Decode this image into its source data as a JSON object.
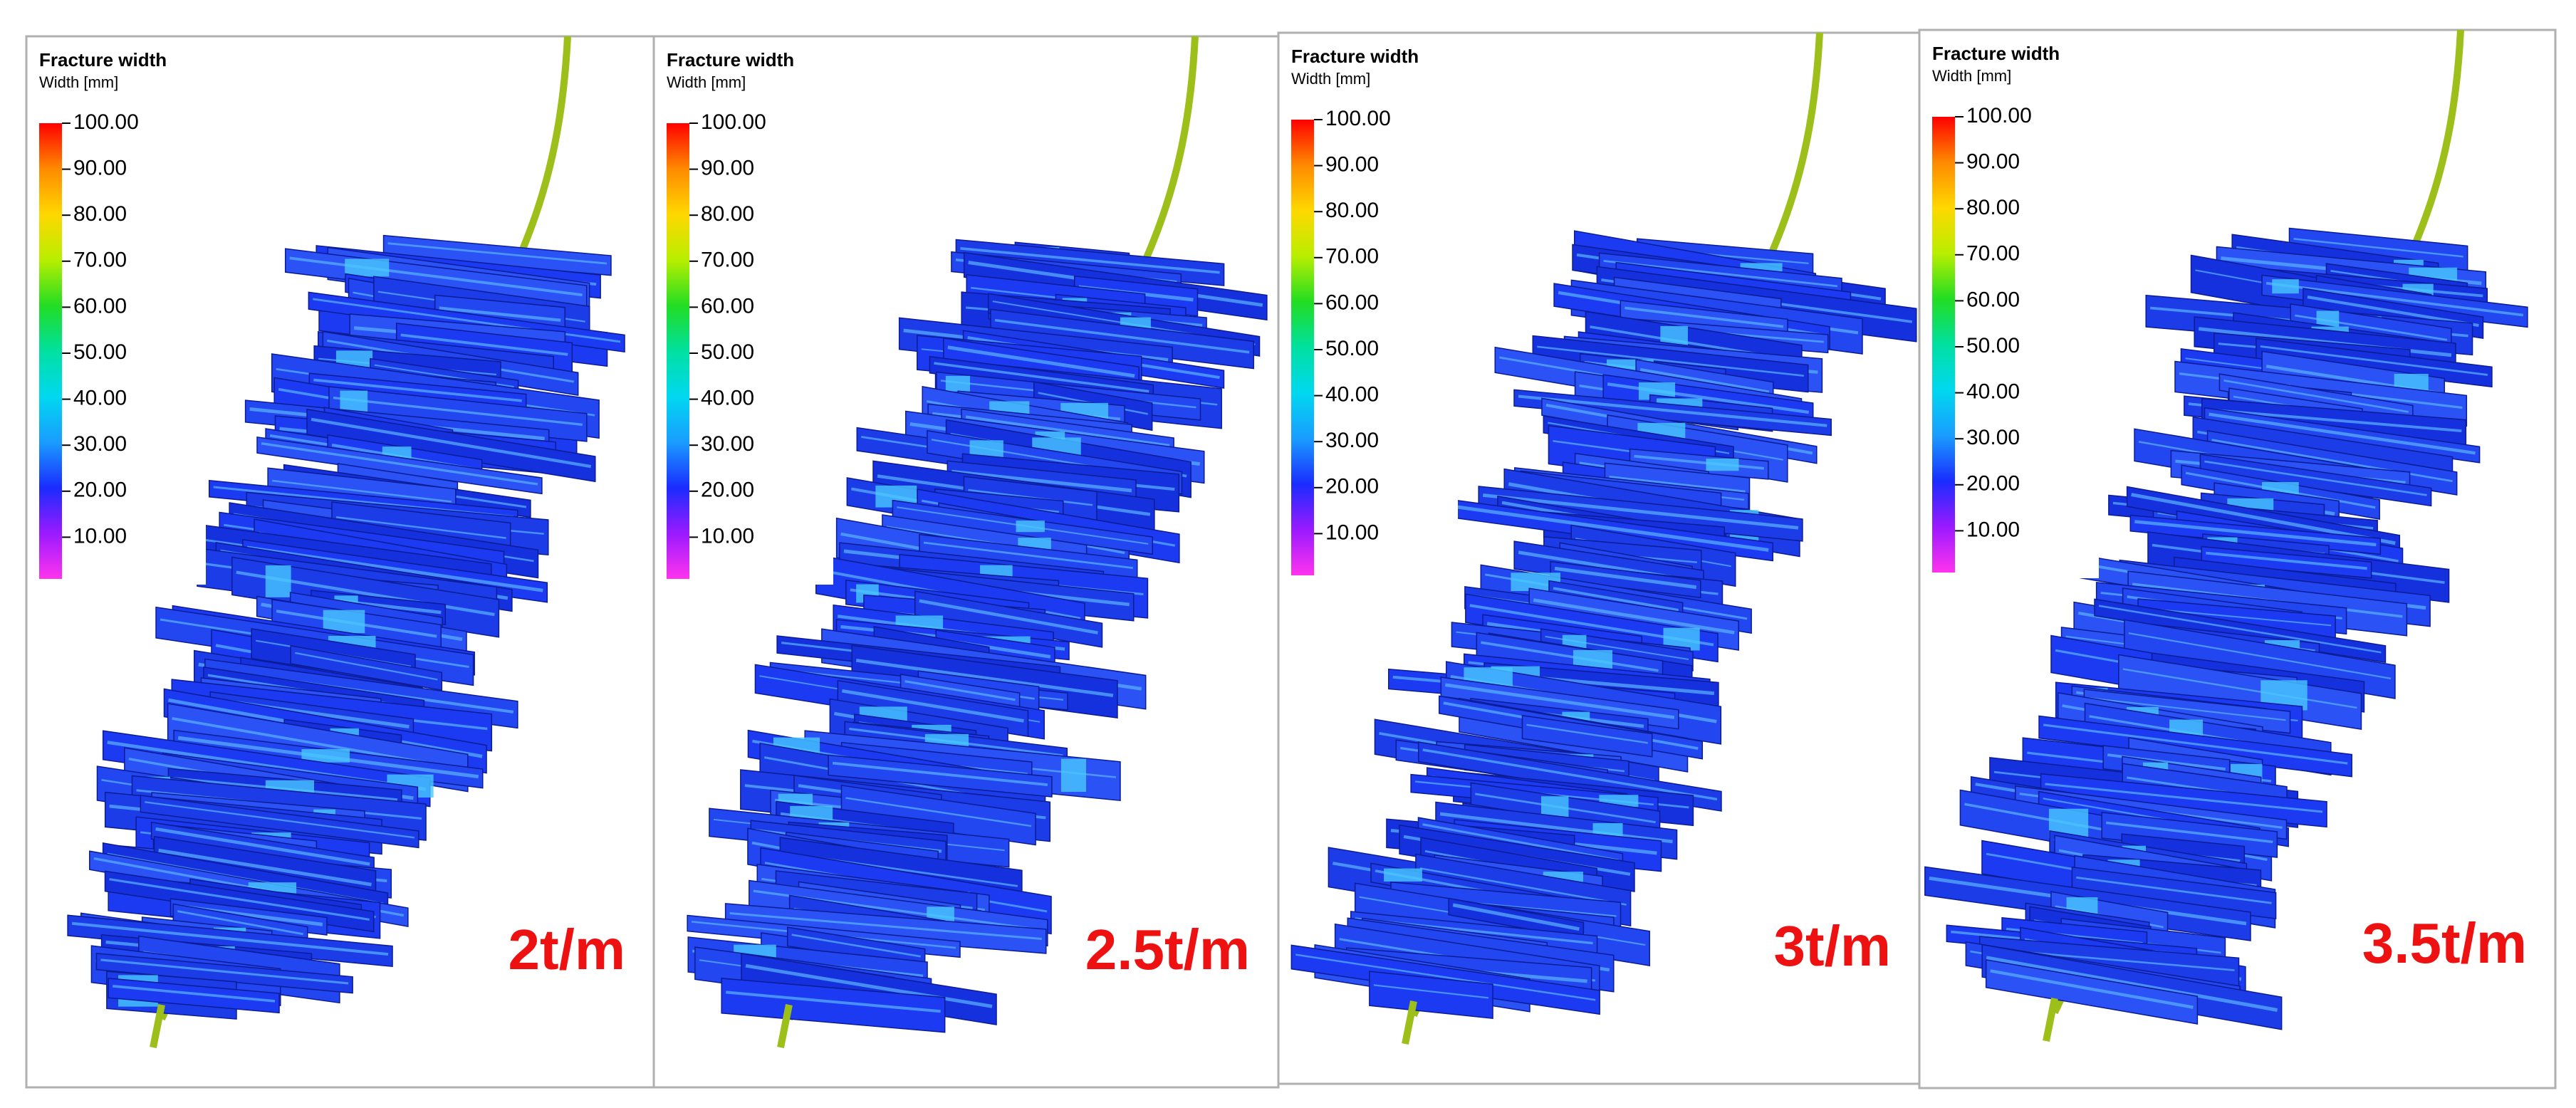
{
  "panels": [
    {
      "title": "Fracture width",
      "subtitle": "Width [mm]",
      "ticks": [
        "100.00",
        "90.00",
        "80.00",
        "70.00",
        "60.00",
        "50.00",
        "40.00",
        "30.00",
        "20.00",
        "10.00"
      ],
      "label": "2t/m"
    },
    {
      "title": "Fracture width",
      "subtitle": "Width [mm]",
      "ticks": [
        "100.00",
        "90.00",
        "80.00",
        "70.00",
        "60.00",
        "50.00",
        "40.00",
        "30.00",
        "20.00",
        "10.00"
      ],
      "label": "2.5t/m"
    },
    {
      "title": "Fracture width",
      "subtitle": "Width [mm]",
      "ticks": [
        "100.00",
        "90.00",
        "80.00",
        "70.00",
        "60.00",
        "50.00",
        "40.00",
        "30.00",
        "20.00",
        "10.00"
      ],
      "label": "3t/m"
    },
    {
      "title": "Fracture width",
      "subtitle": "Width [mm]",
      "ticks": [
        "100.00",
        "90.00",
        "80.00",
        "70.00",
        "60.00",
        "50.00",
        "40.00",
        "30.00",
        "20.00",
        "10.00"
      ],
      "label": "3.5t/m"
    }
  ]
}
